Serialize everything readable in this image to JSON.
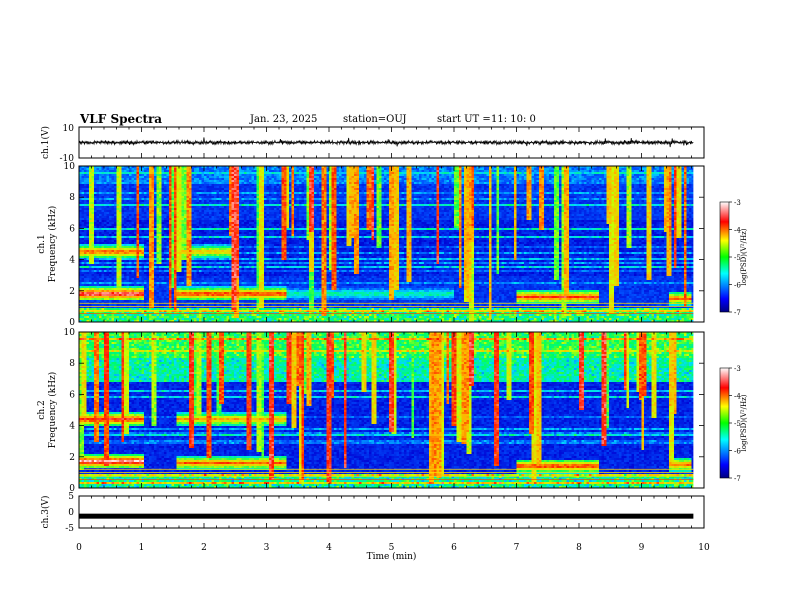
{
  "header": {
    "title": "VLF Spectra",
    "date": "Jan. 23, 2025",
    "station": "station=OUJ",
    "start_label": "start  UT =",
    "start_time": "11: 10: 0"
  },
  "chart_data": [
    {
      "type": "line",
      "name": "ch1-waveform",
      "ylabel": "ch.1(V)",
      "ylim": [
        -10,
        10
      ],
      "yticks": [
        "10",
        "-10"
      ],
      "xlim": [
        0,
        10
      ],
      "amplitude_note": "waveform centered near 0 V with amplitude about 1 V"
    },
    {
      "type": "heatmap",
      "name": "ch1-spectrogram",
      "ylabel_lines": [
        "ch.1",
        "Frequency  (kHz)"
      ],
      "ylim": [
        0,
        10
      ],
      "yticks": [
        "0",
        "2",
        "4",
        "6",
        "8",
        "10"
      ],
      "xlim": [
        0,
        10
      ],
      "colorbar": {
        "label": "log(PSD)(V²/Hz)",
        "ticks": [
          "-3",
          "-4",
          "-5",
          "-6",
          "-7"
        ],
        "range": [
          -7,
          -3
        ]
      },
      "bands": [
        {
          "f": 4.5,
          "t": [
            0,
            1.05
          ],
          "level": 0.82
        },
        {
          "f": 4.5,
          "t": [
            1.55,
            2.45
          ],
          "level": 0.72
        },
        {
          "f": 1.8,
          "t": [
            0,
            1.05
          ],
          "level": 0.95
        },
        {
          "f": 1.8,
          "t": [
            1.55,
            3.3
          ],
          "level": 0.85
        },
        {
          "f": 1.8,
          "t": [
            3.3,
            6.0
          ],
          "level": 0.45
        },
        {
          "f": 1.6,
          "t": [
            7.0,
            8.3
          ],
          "level": 0.85
        },
        {
          "f": 1.5,
          "t": [
            9.45,
            9.8
          ],
          "level": 0.8
        }
      ]
    },
    {
      "type": "heatmap",
      "name": "ch2-spectrogram",
      "ylabel_lines": [
        "ch.2",
        "Frequency  (kHz)"
      ],
      "ylim": [
        0,
        10
      ],
      "yticks": [
        "0",
        "2",
        "4",
        "6",
        "8",
        "10"
      ],
      "xlim": [
        0,
        10
      ],
      "colorbar": {
        "label": "log(PSD)(V²/Hz)",
        "ticks": [
          "-3",
          "-4",
          "-5",
          "-6",
          "-7"
        ],
        "range": [
          -7,
          -3
        ]
      },
      "bands": [
        {
          "f": 4.4,
          "t": [
            0,
            1.05
          ],
          "level": 0.88
        },
        {
          "f": 4.4,
          "t": [
            1.55,
            3.3
          ],
          "level": 0.75
        },
        {
          "f": 1.7,
          "t": [
            0,
            1.05
          ],
          "level": 0.95
        },
        {
          "f": 1.6,
          "t": [
            1.55,
            3.3
          ],
          "level": 0.8
        },
        {
          "f": 1.4,
          "t": [
            7.0,
            8.3
          ],
          "level": 0.85
        },
        {
          "f": 1.5,
          "t": [
            9.45,
            9.8
          ],
          "level": 0.8
        }
      ]
    },
    {
      "type": "line",
      "name": "ch3-waveform",
      "ylabel": "ch.3(V)",
      "ylim": [
        -5,
        5
      ],
      "yticks": [
        "5",
        "0",
        "-5"
      ],
      "xlim": [
        0,
        10
      ],
      "xlabel": "Time  (min)",
      "xticks": [
        "0",
        "1",
        "2",
        "3",
        "4",
        "5",
        "6",
        "7",
        "8",
        "9",
        "10"
      ],
      "flat_value": -1.3
    }
  ]
}
